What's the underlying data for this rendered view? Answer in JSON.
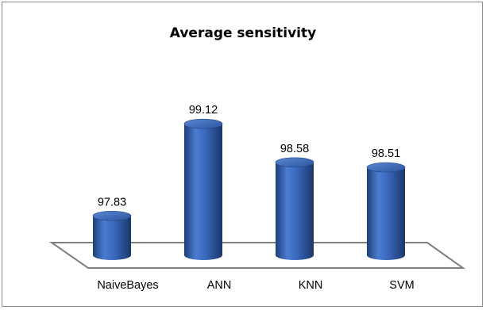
{
  "chart_data": {
    "type": "bar",
    "title": "Average sensitivity",
    "categories": [
      "NaiveBayes",
      "ANN",
      "KNN",
      "SVM"
    ],
    "values": [
      97.83,
      99.12,
      98.58,
      98.51
    ],
    "value_labels": [
      "97.83",
      "99.12",
      "98.58",
      "98.51"
    ],
    "ylim": [
      97.3,
      99.3
    ],
    "bar_style": "3d-cylinder",
    "bar_color": "#2f5ca8",
    "grid": false,
    "legend": "none"
  }
}
